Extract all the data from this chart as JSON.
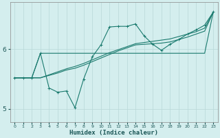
{
  "xlabel": "Humidex (Indice chaleur)",
  "ylabel": "",
  "background_color": "#d4eeee",
  "grid_color": "#b8d8d8",
  "line_color": "#1a7a6e",
  "xlim": [
    -0.5,
    23.5
  ],
  "ylim": [
    4.78,
    6.78
  ],
  "yticks": [
    5,
    6
  ],
  "xticks": [
    0,
    1,
    2,
    3,
    4,
    5,
    6,
    7,
    8,
    9,
    10,
    11,
    12,
    13,
    14,
    15,
    16,
    17,
    18,
    19,
    20,
    21,
    22,
    23
  ],
  "line1_x": [
    0,
    1,
    2,
    3,
    4,
    5,
    6,
    7,
    8,
    9,
    10,
    11,
    12,
    13,
    14,
    15,
    16,
    17,
    18,
    19,
    20,
    21,
    22,
    23
  ],
  "line1_y": [
    5.52,
    5.52,
    5.52,
    5.93,
    5.35,
    5.28,
    5.3,
    5.02,
    5.5,
    5.87,
    6.07,
    6.37,
    6.38,
    6.38,
    6.42,
    6.22,
    6.08,
    5.98,
    6.08,
    6.16,
    6.25,
    6.32,
    6.4,
    6.62
  ],
  "line2_x": [
    0,
    1,
    2,
    3,
    4,
    5,
    6,
    7,
    8,
    9,
    10,
    11,
    12,
    13,
    14,
    15,
    16,
    17,
    18,
    19,
    20,
    21,
    22,
    23
  ],
  "line2_y": [
    5.52,
    5.52,
    5.52,
    5.93,
    5.93,
    5.93,
    5.93,
    5.93,
    5.93,
    5.93,
    5.93,
    5.93,
    5.93,
    5.93,
    5.93,
    5.93,
    5.93,
    5.93,
    5.93,
    5.93,
    5.93,
    5.93,
    5.93,
    6.62
  ],
  "line3_x": [
    0,
    1,
    2,
    3,
    4,
    5,
    6,
    7,
    8,
    9,
    10,
    11,
    12,
    13,
    14,
    15,
    16,
    17,
    18,
    19,
    20,
    21,
    22,
    23
  ],
  "line3_y": [
    5.52,
    5.52,
    5.52,
    5.52,
    5.56,
    5.6,
    5.65,
    5.68,
    5.73,
    5.79,
    5.85,
    5.91,
    5.97,
    6.02,
    6.07,
    6.08,
    6.09,
    6.1,
    6.12,
    6.16,
    6.2,
    6.25,
    6.3,
    6.62
  ],
  "line4_x": [
    0,
    1,
    2,
    3,
    4,
    5,
    6,
    7,
    8,
    9,
    10,
    11,
    12,
    13,
    14,
    15,
    16,
    17,
    18,
    19,
    20,
    21,
    22,
    23
  ],
  "line4_y": [
    5.52,
    5.52,
    5.52,
    5.52,
    5.57,
    5.62,
    5.67,
    5.71,
    5.76,
    5.82,
    5.88,
    5.94,
    5.99,
    6.04,
    6.09,
    6.11,
    6.13,
    6.15,
    6.17,
    6.21,
    6.25,
    6.29,
    6.35,
    6.62
  ]
}
